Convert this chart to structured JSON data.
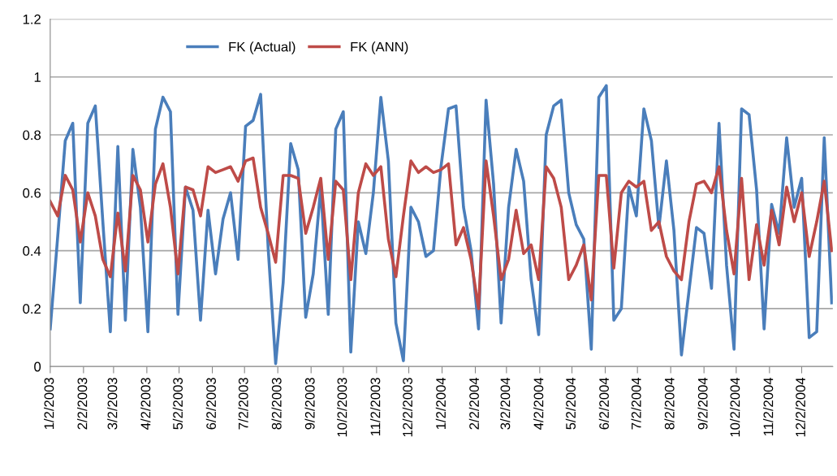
{
  "chart_data": {
    "type": "line",
    "x": [
      "2003-01-02",
      "2003-01-09",
      "2003-01-16",
      "2003-01-23",
      "2003-01-30",
      "2003-02-06",
      "2003-02-13",
      "2003-02-20",
      "2003-02-27",
      "2003-03-06",
      "2003-03-13",
      "2003-03-20",
      "2003-03-27",
      "2003-04-03",
      "2003-04-10",
      "2003-04-17",
      "2003-04-24",
      "2003-05-01",
      "2003-05-08",
      "2003-05-15",
      "2003-05-22",
      "2003-05-29",
      "2003-06-05",
      "2003-06-12",
      "2003-06-19",
      "2003-06-26",
      "2003-07-03",
      "2003-07-10",
      "2003-07-17",
      "2003-07-24",
      "2003-07-31",
      "2003-08-07",
      "2003-08-14",
      "2003-08-21",
      "2003-08-28",
      "2003-09-04",
      "2003-09-11",
      "2003-09-18",
      "2003-09-25",
      "2003-10-02",
      "2003-10-09",
      "2003-10-16",
      "2003-10-23",
      "2003-10-30",
      "2003-11-06",
      "2003-11-13",
      "2003-11-20",
      "2003-11-27",
      "2003-12-04",
      "2003-12-11",
      "2003-12-18",
      "2003-12-25",
      "2004-01-01",
      "2004-01-08",
      "2004-01-15",
      "2004-01-22",
      "2004-01-29",
      "2004-02-05",
      "2004-02-12",
      "2004-02-19",
      "2004-02-26",
      "2004-03-04",
      "2004-03-11",
      "2004-03-18",
      "2004-03-25",
      "2004-04-01",
      "2004-04-08",
      "2004-04-15",
      "2004-04-22",
      "2004-04-29",
      "2004-05-06",
      "2004-05-13",
      "2004-05-20",
      "2004-05-27",
      "2004-06-03",
      "2004-06-10",
      "2004-06-17",
      "2004-06-24",
      "2004-07-01",
      "2004-07-08",
      "2004-07-15",
      "2004-07-22",
      "2004-07-29",
      "2004-08-05",
      "2004-08-12",
      "2004-08-19",
      "2004-08-26",
      "2004-09-02",
      "2004-09-09",
      "2004-09-16",
      "2004-09-23",
      "2004-09-30",
      "2004-10-07",
      "2004-10-14",
      "2004-10-21",
      "2004-10-28",
      "2004-11-04",
      "2004-11-11",
      "2004-11-18",
      "2004-11-25",
      "2004-12-02",
      "2004-12-09",
      "2004-12-16",
      "2004-12-23",
      "2004-12-30"
    ],
    "series": [
      {
        "name": "FK (Actual)",
        "color": "#4a7ebb",
        "values": [
          0.13,
          0.45,
          0.78,
          0.84,
          0.22,
          0.84,
          0.9,
          0.5,
          0.12,
          0.76,
          0.16,
          0.75,
          0.55,
          0.12,
          0.82,
          0.93,
          0.88,
          0.18,
          0.62,
          0.54,
          0.16,
          0.54,
          0.32,
          0.51,
          0.6,
          0.37,
          0.83,
          0.85,
          0.94,
          0.41,
          0.01,
          0.29,
          0.77,
          0.68,
          0.17,
          0.32,
          0.62,
          0.18,
          0.82,
          0.88,
          0.05,
          0.5,
          0.39,
          0.6,
          0.93,
          0.71,
          0.15,
          0.02,
          0.55,
          0.5,
          0.38,
          0.4,
          0.69,
          0.89,
          0.9,
          0.55,
          0.4,
          0.13,
          0.92,
          0.63,
          0.15,
          0.55,
          0.75,
          0.64,
          0.3,
          0.11,
          0.8,
          0.9,
          0.92,
          0.6,
          0.49,
          0.44,
          0.06,
          0.93,
          0.97,
          0.16,
          0.2,
          0.62,
          0.52,
          0.89,
          0.78,
          0.48,
          0.71,
          0.47,
          0.04,
          0.26,
          0.48,
          0.46,
          0.27,
          0.84,
          0.35,
          0.06,
          0.89,
          0.87,
          0.61,
          0.13,
          0.56,
          0.46,
          0.79,
          0.55,
          0.65,
          0.1,
          0.12,
          0.79,
          0.22
        ]
      },
      {
        "name": "FK (ANN)",
        "color": "#be4b48",
        "values": [
          0.57,
          0.52,
          0.66,
          0.61,
          0.43,
          0.6,
          0.52,
          0.37,
          0.31,
          0.53,
          0.33,
          0.66,
          0.61,
          0.43,
          0.63,
          0.7,
          0.55,
          0.32,
          0.62,
          0.61,
          0.52,
          0.69,
          0.67,
          0.68,
          0.69,
          0.64,
          0.71,
          0.72,
          0.55,
          0.46,
          0.36,
          0.66,
          0.66,
          0.65,
          0.46,
          0.55,
          0.65,
          0.37,
          0.64,
          0.61,
          0.3,
          0.6,
          0.7,
          0.66,
          0.69,
          0.44,
          0.31,
          0.52,
          0.71,
          0.67,
          0.69,
          0.67,
          0.68,
          0.7,
          0.42,
          0.48,
          0.37,
          0.2,
          0.71,
          0.52,
          0.3,
          0.37,
          0.54,
          0.39,
          0.42,
          0.3,
          0.69,
          0.65,
          0.55,
          0.3,
          0.35,
          0.42,
          0.23,
          0.66,
          0.66,
          0.34,
          0.6,
          0.64,
          0.62,
          0.64,
          0.47,
          0.5,
          0.38,
          0.33,
          0.3,
          0.5,
          0.63,
          0.64,
          0.6,
          0.69,
          0.47,
          0.32,
          0.65,
          0.3,
          0.49,
          0.35,
          0.54,
          0.42,
          0.62,
          0.5,
          0.6,
          0.38,
          0.5,
          0.64,
          0.4
        ]
      }
    ],
    "xlim": [
      "2003-01-02",
      "2004-12-31"
    ],
    "xticks": [
      {
        "value": "2003-01-02",
        "label": "1/2/2003"
      },
      {
        "value": "2003-02-02",
        "label": "2/2/2003"
      },
      {
        "value": "2003-03-02",
        "label": "3/2/2003"
      },
      {
        "value": "2003-04-02",
        "label": "4/2/2003"
      },
      {
        "value": "2003-05-02",
        "label": "5/2/2003"
      },
      {
        "value": "2003-06-02",
        "label": "6/2/2003"
      },
      {
        "value": "2003-07-02",
        "label": "7/2/2003"
      },
      {
        "value": "2003-08-02",
        "label": "8/2/2003"
      },
      {
        "value": "2003-09-02",
        "label": "9/2/2003"
      },
      {
        "value": "2003-10-02",
        "label": "10/2/2003"
      },
      {
        "value": "2003-11-02",
        "label": "11/2/2003"
      },
      {
        "value": "2003-12-02",
        "label": "12/2/2003"
      },
      {
        "value": "2004-01-02",
        "label": "1/2/2004"
      },
      {
        "value": "2004-02-02",
        "label": "2/2/2004"
      },
      {
        "value": "2004-03-02",
        "label": "3/2/2004"
      },
      {
        "value": "2004-04-02",
        "label": "4/2/2004"
      },
      {
        "value": "2004-05-02",
        "label": "5/2/2004"
      },
      {
        "value": "2004-06-02",
        "label": "6/2/2004"
      },
      {
        "value": "2004-07-02",
        "label": "7/2/2004"
      },
      {
        "value": "2004-08-02",
        "label": "8/2/2004"
      },
      {
        "value": "2004-09-02",
        "label": "9/2/2004"
      },
      {
        "value": "2004-10-02",
        "label": "10/2/2004"
      },
      {
        "value": "2004-11-02",
        "label": "11/2/2004"
      },
      {
        "value": "2004-12-02",
        "label": "12/2/2004"
      }
    ],
    "ylim": [
      0,
      1.2
    ],
    "yticks": [
      0,
      0.2,
      0.4,
      0.6,
      0.8,
      1,
      1.2
    ],
    "grid": "y",
    "legend": "top",
    "marker": "none",
    "line_style": "solid"
  }
}
